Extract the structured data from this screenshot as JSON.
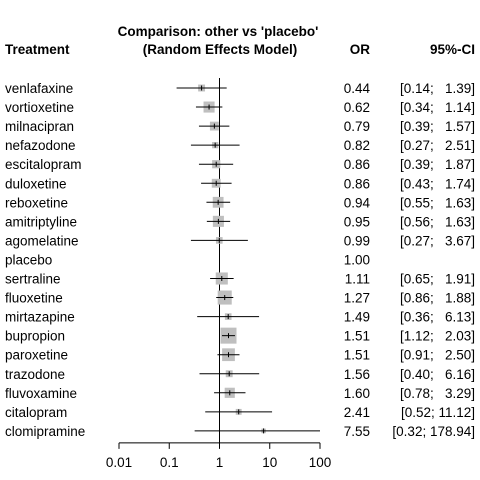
{
  "chart_data": {
    "type": "forest",
    "title_line1": "Comparison: other vs 'placebo'",
    "title_line2": "(Random Effects Model)",
    "col_treatment": "Treatment",
    "col_or": "OR",
    "col_ci": "95%-CI",
    "x_scale": "log",
    "x_ticks": [
      0.01,
      0.1,
      1,
      10,
      100
    ],
    "x_tick_labels": [
      "0.01",
      "0.1",
      "1",
      "10",
      "100"
    ],
    "reference_value": 1,
    "rows": [
      {
        "name": "venlafaxine",
        "or": 0.44,
        "lo": 0.14,
        "hi": 1.39,
        "or_text": "0.44",
        "ci_text": "[0.14;   1.39]",
        "weight": 0.3
      },
      {
        "name": "vortioxetine",
        "or": 0.62,
        "lo": 0.34,
        "hi": 1.14,
        "or_text": "0.62",
        "ci_text": "[0.34;   1.14]",
        "weight": 0.62
      },
      {
        "name": "milnacipran",
        "or": 0.79,
        "lo": 0.39,
        "hi": 1.57,
        "or_text": "0.79",
        "ci_text": "[0.39;   1.57]",
        "weight": 0.45
      },
      {
        "name": "nefazodone",
        "or": 0.82,
        "lo": 0.27,
        "hi": 2.51,
        "or_text": "0.82",
        "ci_text": "[0.27;   2.51]",
        "weight": 0.25
      },
      {
        "name": "escitalopram",
        "or": 0.86,
        "lo": 0.39,
        "hi": 1.87,
        "or_text": "0.86",
        "ci_text": "[0.39;   1.87]",
        "weight": 0.4
      },
      {
        "name": "duloxetine",
        "or": 0.86,
        "lo": 0.43,
        "hi": 1.74,
        "or_text": "0.86",
        "ci_text": "[0.43;   1.74]",
        "weight": 0.45
      },
      {
        "name": "reboxetine",
        "or": 0.94,
        "lo": 0.55,
        "hi": 1.63,
        "or_text": "0.94",
        "ci_text": "[0.55;   1.63]",
        "weight": 0.6
      },
      {
        "name": "amitriptyline",
        "or": 0.95,
        "lo": 0.56,
        "hi": 1.63,
        "or_text": "0.95",
        "ci_text": "[0.56;   1.63]",
        "weight": 0.62
      },
      {
        "name": "agomelatine",
        "or": 0.99,
        "lo": 0.27,
        "hi": 3.67,
        "or_text": "0.99",
        "ci_text": "[0.27;   3.67]",
        "weight": 0.28
      },
      {
        "name": "placebo",
        "or": null,
        "lo": null,
        "hi": null,
        "or_text": "1.00",
        "ci_text": "",
        "weight": 0
      },
      {
        "name": "sertraline",
        "or": 1.11,
        "lo": 0.65,
        "hi": 1.91,
        "or_text": "1.11",
        "ci_text": "[0.65;   1.91]",
        "weight": 0.7
      },
      {
        "name": "fluoxetine",
        "or": 1.27,
        "lo": 0.86,
        "hi": 1.88,
        "or_text": "1.27",
        "ci_text": "[0.86;   1.88]",
        "weight": 0.85
      },
      {
        "name": "mirtazapine",
        "or": 1.49,
        "lo": 0.36,
        "hi": 6.13,
        "or_text": "1.49",
        "ci_text": "[0.36;   6.13]",
        "weight": 0.28
      },
      {
        "name": "bupropion",
        "or": 1.51,
        "lo": 1.12,
        "hi": 2.03,
        "or_text": "1.51",
        "ci_text": "[1.12;   2.03]",
        "weight": 1.0
      },
      {
        "name": "paroxetine",
        "or": 1.51,
        "lo": 0.91,
        "hi": 2.5,
        "or_text": "1.51",
        "ci_text": "[0.91;   2.50]",
        "weight": 0.75
      },
      {
        "name": "trazodone",
        "or": 1.56,
        "lo": 0.4,
        "hi": 6.16,
        "or_text": "1.56",
        "ci_text": "[0.40;   6.16]",
        "weight": 0.3
      },
      {
        "name": "fluvoxamine",
        "or": 1.6,
        "lo": 0.78,
        "hi": 3.29,
        "or_text": "1.60",
        "ci_text": "[0.78;   3.29]",
        "weight": 0.55
      },
      {
        "name": "citalopram",
        "or": 2.41,
        "lo": 0.52,
        "hi": 11.12,
        "or_text": "2.41",
        "ci_text": "[0.52; 11.12]",
        "weight": 0.22
      },
      {
        "name": "clomipramine",
        "or": 7.55,
        "lo": 0.32,
        "hi": 178.94,
        "or_text": "7.55",
        "ci_text": "[0.32; 178.94]",
        "weight": 0.12
      }
    ],
    "colors": {
      "box": "#bfbfbf",
      "line": "#000000",
      "text": "#000000"
    }
  }
}
